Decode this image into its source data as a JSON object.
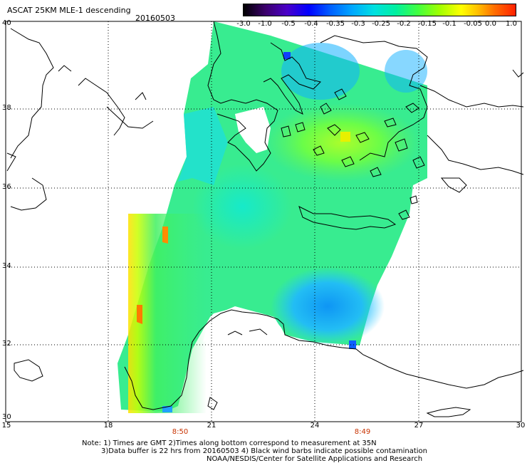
{
  "header": {
    "title": "ASCAT 25KM MLE-1 descending",
    "date": "20160503"
  },
  "colorbar": {
    "ticks": [
      "-3.0",
      "-1.0",
      "-0.5",
      "-0.4",
      "-0.35",
      "-0.3",
      "-0.25",
      "-0.2",
      "-0.15",
      "-0.1",
      "-0.05",
      "0.0",
      "1.0"
    ]
  },
  "map": {
    "lat_labels": [
      "40",
      "38",
      "36",
      "34",
      "32",
      "30"
    ],
    "lon_labels": [
      "15",
      "18",
      "21",
      "24",
      "27",
      "30"
    ],
    "pass_times": [
      "8:50",
      "8:49"
    ],
    "grid": true,
    "colors": {
      "land_outline": "#000000",
      "grid": "#000000",
      "time_label": "#c83200"
    }
  },
  "footer": {
    "note_line1": "Note: 1) Times are GMT 2)Times along bottom correspond to measurement at 35N",
    "note_line2": "3)Data buffer is 22 hrs from 20160503 4) Black wind barbs indicate possible contamination",
    "note_line3": "NOAA/NESDIS/Center for Satellite Applications and Research"
  }
}
